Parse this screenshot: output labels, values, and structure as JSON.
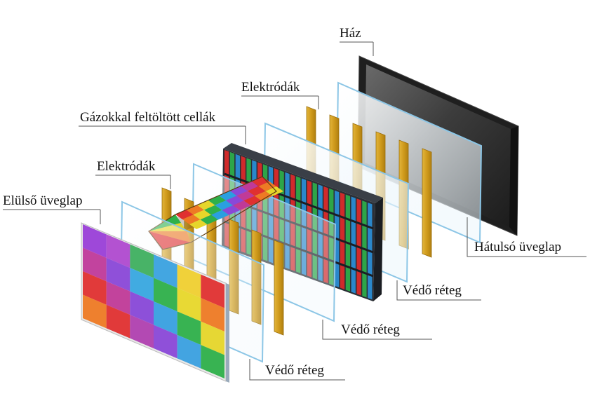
{
  "labels": {
    "haz": "Ház",
    "elektrodak_back": "Elektródák",
    "gazokkal": "Gázokkal feltöltött cellák",
    "elektrodak_front": "Elektródák",
    "elulso": "Elülső üveglap",
    "hatulso": "Hátulsó üveglap",
    "vedo_1": "Védő réteg",
    "vedo_2": "Védő réteg",
    "vedo_3": "Védő réteg"
  },
  "colors": {
    "electrode": "#d4a020",
    "cell_red": "#e02a2a",
    "cell_green": "#2eb04a",
    "cell_blue": "#2a8fd8",
    "housing": "#2c2c2c",
    "glass_edge": "#8cc6e6"
  },
  "icons": [
    "arrow-icon"
  ]
}
